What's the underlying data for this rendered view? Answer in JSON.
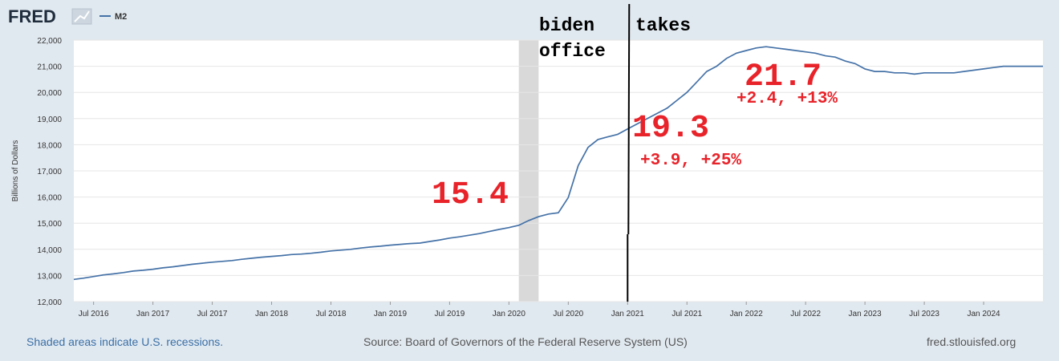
{
  "header": {
    "logo_text": "FRED",
    "legend_label": "M2"
  },
  "colors": {
    "series": "#4572a7",
    "recession": "#d9d9d9",
    "annotation_red": "#e8232a",
    "annotation_line": "#000000",
    "background": "#e1e9f0",
    "plot_bg": "#ffffff"
  },
  "annotations": {
    "note_line1": "biden",
    "note_takes": "takes",
    "note_line2": "office",
    "label_start": "15.4",
    "label_mid": "19.3",
    "label_mid_change": "+3.9, +25%",
    "label_peak": "21.7",
    "label_peak_change": "+2.4, +13%"
  },
  "chart_data": {
    "type": "line",
    "title": "",
    "xlabel": "",
    "ylabel": "Billions of Dollars",
    "ylim": [
      12000,
      22000
    ],
    "yticks": [
      "12,000",
      "13,000",
      "14,000",
      "15,000",
      "16,000",
      "17,000",
      "18,000",
      "19,000",
      "20,000",
      "21,000",
      "22,000"
    ],
    "xtick_labels": [
      "Jul 2016",
      "Jan 2017",
      "Jul 2017",
      "Jan 2018",
      "Jul 2018",
      "Jan 2019",
      "Jul 2019",
      "Jan 2020",
      "Jul 2020",
      "Jan 2021",
      "Jul 2021",
      "Jan 2022",
      "Jul 2022",
      "Jan 2023",
      "Jul 2023",
      "Jan 2024"
    ],
    "x_start": "2016-05",
    "x_end": "2024-07",
    "recession": {
      "start": "2020-02",
      "end": "2020-04"
    },
    "vertical_marker": "2021-01",
    "series": [
      {
        "name": "M2",
        "x": [
          "2016-05",
          "2016-06",
          "2016-07",
          "2016-08",
          "2016-09",
          "2016-10",
          "2016-11",
          "2016-12",
          "2017-01",
          "2017-02",
          "2017-03",
          "2017-04",
          "2017-05",
          "2017-06",
          "2017-07",
          "2017-08",
          "2017-09",
          "2017-10",
          "2017-11",
          "2017-12",
          "2018-01",
          "2018-02",
          "2018-03",
          "2018-04",
          "2018-05",
          "2018-06",
          "2018-07",
          "2018-08",
          "2018-09",
          "2018-10",
          "2018-11",
          "2018-12",
          "2019-01",
          "2019-02",
          "2019-03",
          "2019-04",
          "2019-05",
          "2019-06",
          "2019-07",
          "2019-08",
          "2019-09",
          "2019-10",
          "2019-11",
          "2019-12",
          "2020-01",
          "2020-02",
          "2020-03",
          "2020-04",
          "2020-05",
          "2020-06",
          "2020-07",
          "2020-08",
          "2020-09",
          "2020-10",
          "2020-11",
          "2020-12",
          "2021-01",
          "2021-02",
          "2021-03",
          "2021-04",
          "2021-05",
          "2021-06",
          "2021-07",
          "2021-08",
          "2021-09",
          "2021-10",
          "2021-11",
          "2021-12",
          "2022-01",
          "2022-02",
          "2022-03",
          "2022-04",
          "2022-05",
          "2022-06",
          "2022-07",
          "2022-08",
          "2022-09",
          "2022-10",
          "2022-11",
          "2022-12",
          "2023-01",
          "2023-02",
          "2023-03",
          "2023-04",
          "2023-05",
          "2023-06",
          "2023-07",
          "2023-08",
          "2023-09",
          "2023-10",
          "2023-11",
          "2023-12",
          "2024-01",
          "2024-02",
          "2024-03",
          "2024-04",
          "2024-05",
          "2024-06",
          "2024-07"
        ],
        "values": [
          12850,
          12900,
          12960,
          13020,
          13060,
          13110,
          13170,
          13200,
          13240,
          13290,
          13330,
          13380,
          13430,
          13470,
          13510,
          13540,
          13570,
          13620,
          13660,
          13700,
          13730,
          13760,
          13800,
          13820,
          13850,
          13890,
          13940,
          13970,
          14000,
          14050,
          14090,
          14120,
          14160,
          14190,
          14220,
          14240,
          14300,
          14360,
          14430,
          14480,
          14540,
          14600,
          14680,
          14760,
          14830,
          14920,
          15100,
          15250,
          15350,
          15400,
          15980,
          17200,
          17900,
          18200,
          18300,
          18400,
          18600,
          18800,
          19000,
          19200,
          19400,
          19700,
          20000,
          20400,
          20800,
          21000,
          21300,
          21500,
          21600,
          21700,
          21750,
          21700,
          21650,
          21600,
          21550,
          21500,
          21400,
          21350,
          21200,
          21100,
          20900,
          20800,
          20800,
          20750,
          20750,
          20700,
          20750,
          20750,
          20750,
          20750,
          20800,
          20850,
          20900,
          20950,
          21000,
          21000,
          21000,
          21000,
          21000
        ]
      }
    ]
  },
  "footer": {
    "recession_note": "Shaded areas indicate U.S. recessions.",
    "source": "Source: Board of Governors of the Federal Reserve System (US)",
    "site": "fred.stlouisfed.org"
  }
}
